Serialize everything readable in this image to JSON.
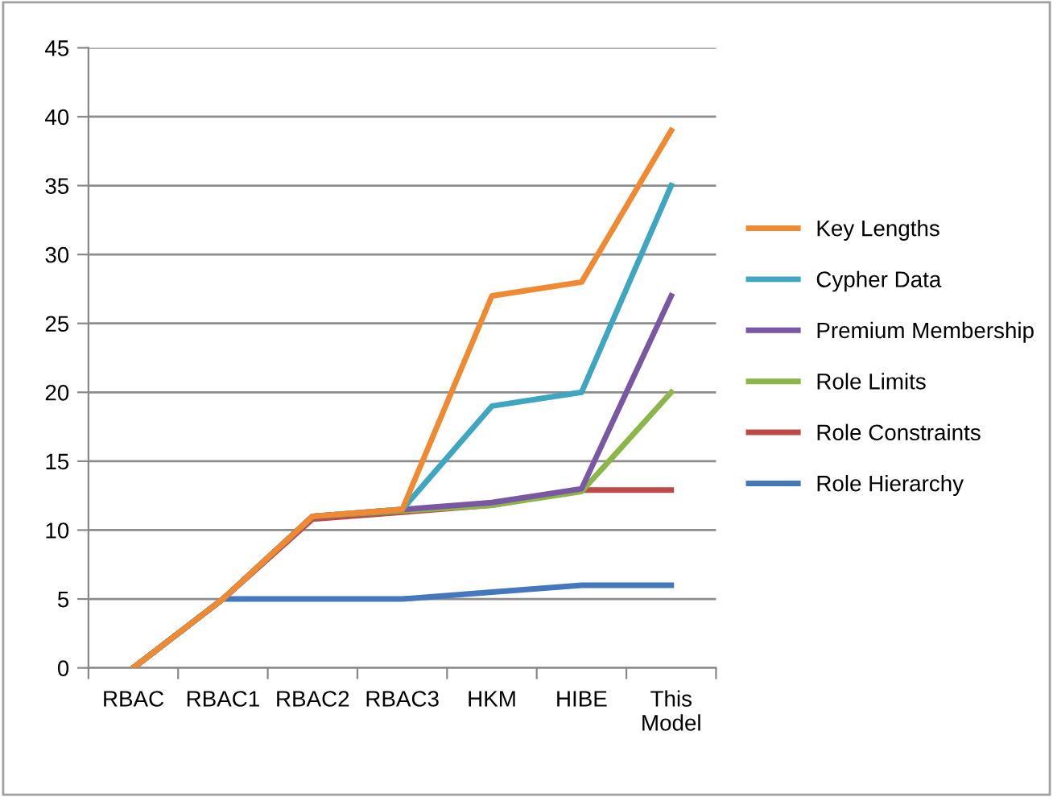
{
  "chart_data": {
    "type": "line",
    "categories": [
      "RBAC",
      "RBAC1",
      "RBAC2",
      "RBAC3",
      "HKM",
      "HIBE",
      "This Model"
    ],
    "series": [
      {
        "name": "Key Lengths",
        "color": "#f08a32",
        "values": [
          0,
          5,
          11,
          11.5,
          27,
          28,
          39
        ]
      },
      {
        "name": "Cypher Data",
        "color": "#3ea6c0",
        "values": [
          0,
          5,
          11,
          11.5,
          19,
          20,
          35
        ]
      },
      {
        "name": "Premium Membership",
        "color": "#7a57a3",
        "values": [
          0,
          5,
          11,
          11.5,
          12,
          13,
          27
        ]
      },
      {
        "name": "Role Limits",
        "color": "#8db64a",
        "values": [
          0,
          5,
          11,
          11.4,
          11.8,
          12.8,
          20
        ]
      },
      {
        "name": "Role Constraints",
        "color": "#bd4a46",
        "values": [
          0,
          5,
          10.8,
          11.3,
          11.8,
          12.9,
          12.9
        ]
      },
      {
        "name": "Role Hierarchy",
        "color": "#4477bb",
        "values": [
          0,
          5,
          5,
          5,
          5.5,
          6,
          6
        ]
      }
    ],
    "ylim": [
      0,
      45
    ],
    "yticks": [
      0,
      5,
      10,
      15,
      20,
      25,
      30,
      35,
      40,
      45
    ],
    "grid": "y",
    "legend": "right",
    "marker": "none",
    "line_style": "solid"
  }
}
